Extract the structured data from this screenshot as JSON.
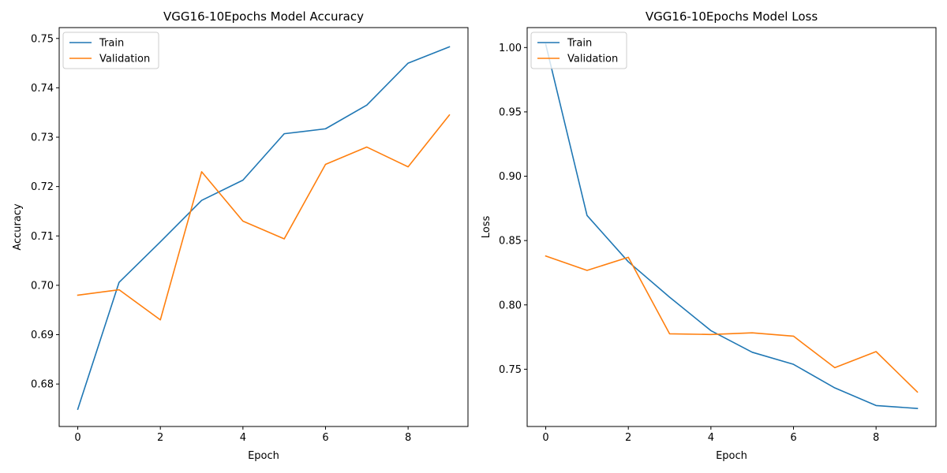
{
  "chart_data": [
    {
      "type": "line",
      "title": "VGG16-10Epochs Model Accuracy",
      "xlabel": "Epoch",
      "ylabel": "Accuracy",
      "xlim": [
        -0.45,
        9.45
      ],
      "ylim": [
        0.6714,
        0.7522
      ],
      "x_ticks": [
        0,
        2,
        4,
        6,
        8
      ],
      "y_ticks": [
        0.68,
        0.69,
        0.7,
        0.71,
        0.72,
        0.73,
        0.74,
        0.75
      ],
      "x_tick_labels": [
        "0",
        "2",
        "4",
        "6",
        "8"
      ],
      "y_tick_labels": [
        "0.68",
        "0.69",
        "0.70",
        "0.71",
        "0.72",
        "0.73",
        "0.74",
        "0.75"
      ],
      "legend_position": "top-left",
      "x": [
        0,
        1,
        2,
        3,
        4,
        5,
        6,
        7,
        8,
        9
      ],
      "series": [
        {
          "name": "Train",
          "color": "#1f77b4",
          "values": [
            0.6749,
            0.7006,
            0.7088,
            0.7172,
            0.7213,
            0.7307,
            0.7317,
            0.7365,
            0.745,
            0.7483
          ]
        },
        {
          "name": "Validation",
          "color": "#ff7f0e",
          "values": [
            0.698,
            0.6991,
            0.693,
            0.723,
            0.713,
            0.7094,
            0.7245,
            0.728,
            0.724,
            0.7345
          ]
        }
      ]
    },
    {
      "type": "line",
      "title": "VGG16-10Epochs Model Loss",
      "xlabel": "Epoch",
      "ylabel": "Loss",
      "xlim": [
        -0.45,
        9.45
      ],
      "ylim": [
        0.7055,
        1.0155
      ],
      "x_ticks": [
        0,
        2,
        4,
        6,
        8
      ],
      "y_ticks": [
        0.75,
        0.8,
        0.85,
        0.9,
        0.95,
        1.0
      ],
      "x_tick_labels": [
        "0",
        "2",
        "4",
        "6",
        "8"
      ],
      "y_tick_labels": [
        "0.75",
        "0.80",
        "0.85",
        "0.90",
        "0.95",
        "1.00"
      ],
      "legend_position": "top-left",
      "x": [
        0,
        1,
        2,
        3,
        4,
        5,
        6,
        7,
        8,
        9
      ],
      "series": [
        {
          "name": "Train",
          "color": "#1f77b4",
          "values": [
            1.0025,
            0.8695,
            0.8335,
            0.806,
            0.78,
            0.7632,
            0.7538,
            0.7355,
            0.7218,
            0.7195
          ]
        },
        {
          "name": "Validation",
          "color": "#ff7f0e",
          "values": [
            0.838,
            0.8268,
            0.837,
            0.7775,
            0.777,
            0.7783,
            0.7757,
            0.7512,
            0.7637,
            0.7323
          ]
        }
      ]
    }
  ]
}
